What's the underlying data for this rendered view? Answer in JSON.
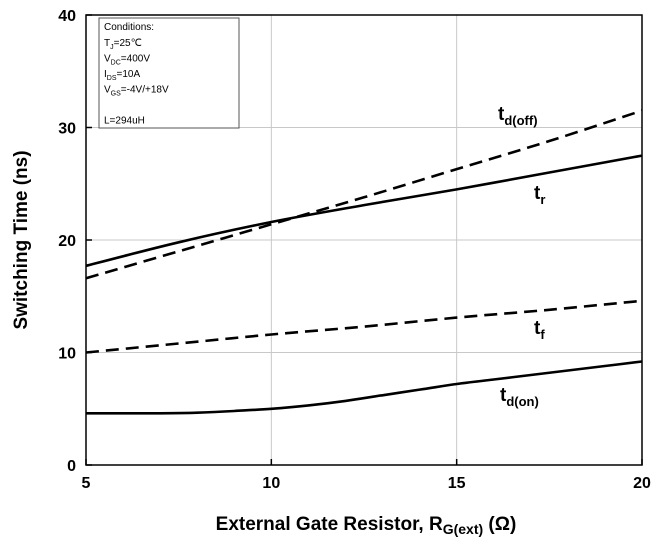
{
  "chart_data": {
    "type": "line",
    "xlabel": "External Gate Resistor, R",
    "xlabel_sub": "G(ext)",
    "xlabel_tail": " (Ω)",
    "ylabel": "Switching Time (ns)",
    "xlim": [
      5,
      20
    ],
    "ylim": [
      0,
      40
    ],
    "xticks": [
      5,
      10,
      15,
      20
    ],
    "yticks": [
      0,
      10,
      20,
      30,
      40
    ],
    "grid": true,
    "conditions": {
      "title": "Conditions:",
      "lines": [
        {
          "main": "T",
          "sub": "J",
          "rest": "=25℃"
        },
        {
          "main": "V",
          "sub": "DC",
          "rest": "=400V"
        },
        {
          "main": "I",
          "sub": "DS",
          "rest": "=10A"
        },
        {
          "main": "V",
          "sub": "GS",
          "rest": "=-4V/+18V"
        },
        {
          "main": "",
          "sub": "",
          "rest": ""
        },
        {
          "main": "L=294uH",
          "sub": "",
          "rest": ""
        }
      ]
    },
    "series": [
      {
        "name": "t",
        "sub": "d(off)",
        "style": "dashed",
        "x": [
          5,
          7.5,
          10,
          12.5,
          15,
          17.5,
          20
        ],
        "y": [
          16.6,
          19.0,
          21.4,
          23.8,
          26.3,
          28.8,
          31.5
        ]
      },
      {
        "name": "t",
        "sub": "r",
        "style": "solid",
        "x": [
          5,
          7.5,
          10,
          12.5,
          15,
          17.5,
          20
        ],
        "y": [
          17.7,
          19.8,
          21.6,
          23.1,
          24.5,
          26.0,
          27.5
        ]
      },
      {
        "name": "t",
        "sub": "f",
        "style": "dashed",
        "x": [
          5,
          7.5,
          10,
          12.5,
          15,
          17.5,
          20
        ],
        "y": [
          10.0,
          10.8,
          11.6,
          12.3,
          13.1,
          13.8,
          14.6
        ]
      },
      {
        "name": "t",
        "sub": "d(on)",
        "style": "solid",
        "x": [
          5,
          6,
          7,
          8,
          9,
          10,
          11,
          12,
          13,
          14,
          15,
          16,
          17,
          18,
          19,
          20
        ],
        "y": [
          4.6,
          4.6,
          4.6,
          4.65,
          4.8,
          5.0,
          5.3,
          5.7,
          6.2,
          6.7,
          7.2,
          7.6,
          8.0,
          8.4,
          8.8,
          9.2
        ]
      }
    ]
  }
}
